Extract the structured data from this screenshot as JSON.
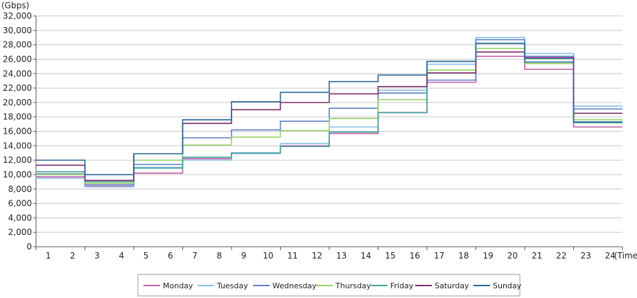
{
  "chart_data": {
    "type": "line",
    "step": true,
    "yunit": "(Gbps)",
    "xunit": "(Time)",
    "xlabels": [
      "1",
      "2",
      "3",
      "4",
      "5",
      "6",
      "7",
      "8",
      "9",
      "10",
      "11",
      "12",
      "13",
      "14",
      "15",
      "16",
      "17",
      "18",
      "19",
      "20",
      "21",
      "22",
      "23",
      "24"
    ],
    "yticks": [
      "0",
      "2,000",
      "4,000",
      "6,000",
      "8,000",
      "10,000",
      "12,000",
      "14,000",
      "16,000",
      "18,000",
      "20,000",
      "22,000",
      "24,000",
      "26,000",
      "28,000",
      "30,000",
      "32,000"
    ],
    "ylim": [
      0,
      32000
    ],
    "grid": true,
    "legend_position": "bottom",
    "x_periods": [
      "1-2",
      "3-4",
      "5-6",
      "7-8",
      "9-10",
      "11-12",
      "13-14",
      "15-16",
      "17-18",
      "19-20",
      "21-22",
      "23-24"
    ],
    "series": [
      {
        "name": "Monday",
        "color": "#c45aa6",
        "values": [
          9700,
          8400,
          10200,
          12200,
          13000,
          14000,
          15700,
          18600,
          22800,
          26400,
          24600,
          16600
        ]
      },
      {
        "name": "Tuesday",
        "color": "#88c0e4",
        "values": [
          9500,
          8300,
          11000,
          12000,
          12900,
          14300,
          16600,
          21700,
          25300,
          29000,
          26800,
          19500
        ]
      },
      {
        "name": "Wednesday",
        "color": "#5a7dc8",
        "values": [
          10100,
          8600,
          11400,
          15100,
          16200,
          17400,
          19200,
          21300,
          23100,
          28700,
          26400,
          19100
        ]
      },
      {
        "name": "Thursday",
        "color": "#98d264",
        "values": [
          10000,
          8800,
          12000,
          14100,
          15200,
          16100,
          17800,
          20400,
          24500,
          27500,
          25400,
          17600
        ]
      },
      {
        "name": "Friday",
        "color": "#3ea098",
        "values": [
          10400,
          9000,
          10900,
          12400,
          13000,
          13900,
          15900,
          18600,
          25700,
          28200,
          26100,
          17200
        ]
      },
      {
        "name": "Saturday",
        "color": "#7a2a6a",
        "values": [
          11300,
          9200,
          12900,
          17100,
          19000,
          20000,
          21200,
          22200,
          24100,
          27000,
          26200,
          18500
        ]
      },
      {
        "name": "Sunday",
        "color": "#2a6496",
        "values": [
          12000,
          10000,
          12900,
          17600,
          20100,
          21400,
          22900,
          23800,
          25700,
          28200,
          25600,
          17300
        ]
      }
    ]
  }
}
